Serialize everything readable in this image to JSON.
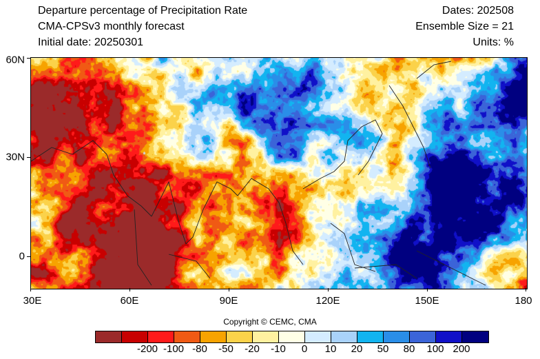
{
  "header": {
    "title": "Departure percentage of Precipitation Rate",
    "model": "CMA-CPSv3 monthly forecast",
    "initial_date": "Initial date: 20250301",
    "dates": "Dates: 202508",
    "ensemble": "Ensemble Size = 21",
    "units": "Units: %"
  },
  "map": {
    "lon_range": [
      30,
      180
    ],
    "lat_range": [
      -10,
      60
    ],
    "x_ticks": [
      "30E",
      "60E",
      "90E",
      "120E",
      "150E",
      "180"
    ],
    "y_ticks": [
      "60N",
      "30N",
      "0"
    ],
    "missing_color": "#d3d3d3",
    "coastline_color": "#222222"
  },
  "colorbar": {
    "colors": [
      "#9b2a2a",
      "#c80000",
      "#ff1a1a",
      "#f05a14",
      "#f7a300",
      "#fbd24a",
      "#fff1a0",
      "#ffffe6",
      "#d4ecff",
      "#a9d2fa",
      "#12b4f0",
      "#2a8ee8",
      "#3b64d8",
      "#1010c8",
      "#000080"
    ],
    "labels": [
      "-200",
      "-100",
      "-80",
      "-50",
      "-20",
      "-10",
      "0",
      "10",
      "20",
      "50",
      "80",
      "100",
      "200"
    ]
  },
  "copyright": "Copyright © CEMC, CMA"
}
